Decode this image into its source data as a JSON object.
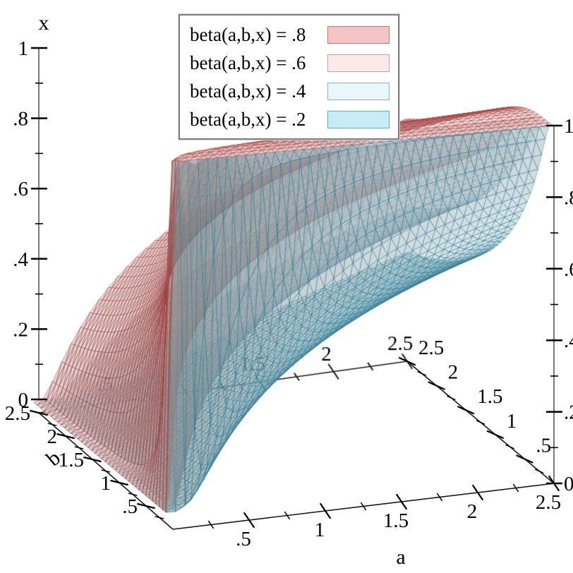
{
  "legend": {
    "items": [
      {
        "label": "beta(a,b,x) = .8",
        "swatch_fill": "#f6c4c4",
        "swatch_border": "#b87a78"
      },
      {
        "label": "beta(a,b,x) = .6",
        "swatch_fill": "#fceaea",
        "swatch_border": "#c2a2a0"
      },
      {
        "label": "beta(a,b,x) = .4",
        "swatch_fill": "#e9f6fa",
        "swatch_border": "#97aeba"
      },
      {
        "label": "beta(a,b,x) = .2",
        "swatch_fill": "#c7ecf5",
        "swatch_border": "#59b0c8"
      }
    ]
  },
  "chart_data": {
    "type": "isosurface3d",
    "function": "surfaces of constant regularized incomplete beta: beta(a,b,x) = p, i.e. x = inverse-beta(a,b,p)",
    "levels": [
      0.8,
      0.6,
      0.4,
      0.2
    ],
    "series": [
      {
        "name": "beta(a,b,x) = .8",
        "level": 0.8,
        "line": "#9e3e3c",
        "line_alpha": 0.8,
        "fill": "#f4c6c6",
        "fill_alpha": 0.4
      },
      {
        "name": "beta(a,b,x) = .6",
        "level": 0.6,
        "line": "#ba8886",
        "line_alpha": 0.6,
        "fill": "#fbe8e8",
        "fill_alpha": 0.4
      },
      {
        "name": "beta(a,b,x) = .4",
        "level": 0.4,
        "line": "#809eb0",
        "line_alpha": 0.6,
        "fill": "#e8f5f9",
        "fill_alpha": 0.4
      },
      {
        "name": "beta(a,b,x) = .2",
        "level": 0.2,
        "line": "#2a768f",
        "line_alpha": 0.8,
        "fill": "#c6eaf3",
        "fill_alpha": 0.45
      }
    ],
    "axes": {
      "x": {
        "title": "x",
        "min": 0,
        "max": 1,
        "major_ticks": [
          0,
          0.2,
          0.4,
          0.6,
          0.8,
          1
        ],
        "tick_labels": [
          "0",
          ".2",
          ".4",
          ".6",
          ".8",
          "1"
        ],
        "minor_ticks": [
          0.1,
          0.3,
          0.5,
          0.7,
          0.9
        ]
      },
      "a": {
        "title": "a",
        "min": 0,
        "max": 2.5,
        "major_ticks": [
          0.5,
          1,
          1.5,
          2,
          2.5
        ],
        "tick_labels": [
          ".5",
          "1",
          "1.5",
          "2",
          "2.5"
        ],
        "minor_ticks": [
          0.25,
          0.75,
          1.25,
          1.75,
          2.25
        ]
      },
      "b": {
        "title": "b",
        "min": 0,
        "max": 2.5,
        "major_ticks": [
          0.5,
          1,
          1.5,
          2,
          2.5
        ],
        "tick_labels": [
          ".5",
          "1",
          "1.5",
          "2",
          "2.5"
        ],
        "minor_ticks": [
          0.25,
          0.75,
          1.25,
          1.75,
          2.25
        ]
      }
    },
    "grid_divisions": 40,
    "style": {
      "background": "#ffffff",
      "vertical_axis_line": "#7a7a7a",
      "floor_axis_line": "#1a1a1a",
      "tick_color": "#000000",
      "text_color": "#000000",
      "tick_font_px": 29
    }
  }
}
